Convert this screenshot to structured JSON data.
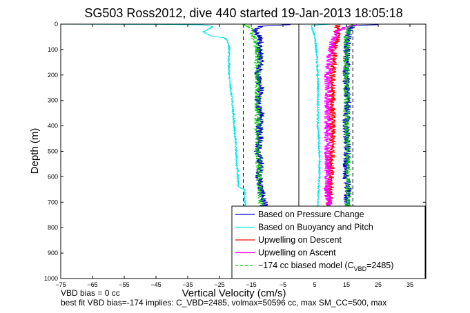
{
  "chart_data": {
    "type": "line",
    "title": "SG503 Ross2012, dive 440 started 19-Jan-2013 18:05:18",
    "xlabel": "Vertical Velocity (cm/s)",
    "ylabel": "Depth (m)",
    "xlim": [
      -75,
      40
    ],
    "ylim": [
      0,
      1000
    ],
    "y_reversed": true,
    "xticks": [
      -75,
      -65,
      -55,
      -45,
      -35,
      -25,
      -15,
      -5,
      5,
      15,
      25,
      35
    ],
    "yticks": [
      0,
      100,
      200,
      300,
      400,
      500,
      600,
      700,
      800,
      900,
      1000
    ],
    "grid": false,
    "legend_position": "bottom-right",
    "reference_lines": [
      {
        "x": 0,
        "style": "solid",
        "color": "#000000"
      },
      {
        "x": -17.5,
        "style": "dashed",
        "color": "#000000"
      },
      {
        "x": 17,
        "style": "dashed",
        "color": "#000000"
      }
    ],
    "series": [
      {
        "name": "Based on Pressure Change",
        "color": "#0000cc",
        "style": "solid",
        "noise": 1.2,
        "points": [
          [
            -3,
            2
          ],
          [
            -12,
            8
          ],
          [
            -14,
            25
          ],
          [
            -12,
            60
          ],
          [
            -12.5,
            100
          ],
          [
            -12,
            150
          ],
          [
            -13,
            200
          ],
          [
            -12,
            250
          ],
          [
            -13,
            300
          ],
          [
            -12,
            350
          ],
          [
            -12.5,
            400
          ],
          [
            -12,
            450
          ],
          [
            -13,
            500
          ],
          [
            -12,
            550
          ],
          [
            -12.5,
            600
          ],
          [
            -12,
            650
          ],
          [
            -11,
            700
          ],
          [
            -11,
            720
          ],
          [
            15,
            720
          ],
          [
            15,
            700
          ],
          [
            15.5,
            650
          ],
          [
            15,
            600
          ],
          [
            15,
            550
          ],
          [
            15.5,
            500
          ],
          [
            15,
            450
          ],
          [
            15,
            400
          ],
          [
            15,
            350
          ],
          [
            15.5,
            300
          ],
          [
            15,
            250
          ],
          [
            15,
            200
          ],
          [
            15,
            150
          ],
          [
            15,
            100
          ],
          [
            15.5,
            60
          ],
          [
            16,
            20
          ],
          [
            17,
            5
          ],
          [
            25,
            2
          ]
        ]
      },
      {
        "name": "Based on Buoyancy and Pitch",
        "color": "#00e5e5",
        "style": "solid",
        "noise": 0.3,
        "points": [
          [
            -75,
            0
          ],
          [
            -45,
            1
          ],
          [
            -30,
            3
          ],
          [
            -27,
            10
          ],
          [
            -30,
            30
          ],
          [
            -28,
            45
          ],
          [
            -23,
            55
          ],
          [
            -22,
            80
          ],
          [
            -22,
            200
          ],
          [
            -21,
            300
          ],
          [
            -20,
            450
          ],
          [
            -19.5,
            550
          ],
          [
            -19,
            640
          ],
          [
            -17,
            650
          ],
          [
            -17,
            700
          ],
          [
            -17,
            720
          ],
          [
            6,
            720
          ],
          [
            6,
            700
          ],
          [
            6.5,
            600
          ],
          [
            6.5,
            500
          ],
          [
            6,
            400
          ],
          [
            6,
            300
          ],
          [
            6,
            200
          ],
          [
            5.5,
            100
          ],
          [
            5,
            50
          ],
          [
            4,
            10
          ],
          [
            4,
            5
          ],
          [
            10,
            0
          ]
        ]
      },
      {
        "name": "Upwelling on Descent",
        "color": "#ff0000",
        "style": "solid",
        "noise": 1.1,
        "points": [
          [
            12,
            2
          ],
          [
            12,
            20
          ],
          [
            12,
            60
          ],
          [
            11,
            100
          ],
          [
            11,
            150
          ],
          [
            10.5,
            200
          ],
          [
            10.5,
            300
          ],
          [
            10.5,
            400
          ],
          [
            10.5,
            500
          ],
          [
            10,
            600
          ],
          [
            10,
            650
          ],
          [
            9.5,
            700
          ],
          [
            9.5,
            720
          ]
        ]
      },
      {
        "name": "Upwelling on Ascent",
        "color": "#ff00ff",
        "style": "solid",
        "noise": 1.1,
        "points": [
          [
            9.5,
            720
          ],
          [
            9.5,
            700
          ],
          [
            9,
            650
          ],
          [
            9,
            600
          ],
          [
            9,
            500
          ],
          [
            9,
            400
          ],
          [
            9,
            300
          ],
          [
            9,
            200
          ],
          [
            9.5,
            150
          ],
          [
            10,
            100
          ],
          [
            11,
            60
          ],
          [
            12,
            30
          ],
          [
            15,
            10
          ],
          [
            18,
            2
          ]
        ]
      },
      {
        "name": "-174 cc biased model (C_VBD=2485)",
        "color": "#00cc00",
        "style": "dashed",
        "noise": 1.0,
        "points": [
          [
            -17,
            2
          ],
          [
            -15,
            20
          ],
          [
            -14,
            60
          ],
          [
            -13,
            100
          ],
          [
            -13,
            200
          ],
          [
            -13,
            300
          ],
          [
            -13,
            400
          ],
          [
            -13,
            500
          ],
          [
            -12.5,
            600
          ],
          [
            -12,
            700
          ],
          [
            -12,
            720
          ],
          [
            15.5,
            720
          ],
          [
            15.5,
            700
          ],
          [
            15.5,
            600
          ],
          [
            15.5,
            500
          ],
          [
            15,
            400
          ],
          [
            15,
            300
          ],
          [
            15,
            200
          ],
          [
            15,
            100
          ],
          [
            15,
            50
          ],
          [
            16,
            10
          ],
          [
            17,
            2
          ]
        ]
      }
    ],
    "legend": [
      {
        "label": "Based on Pressure Change",
        "color": "#0000cc",
        "style": "solid"
      },
      {
        "label": "Based on Buoyancy and Pitch",
        "color": "#00e5e5",
        "style": "solid"
      },
      {
        "label": "Upwelling on Descent",
        "color": "#ff0000",
        "style": "solid"
      },
      {
        "label": "Upwelling on Ascent",
        "color": "#ff00ff",
        "style": "solid"
      },
      {
        "label_main": "−174 cc biased model (C",
        "label_sub": "VBD",
        "label_tail": "=2485)",
        "color": "#00cc00",
        "style": "dashed"
      }
    ],
    "annotations": {
      "line1": "VBD bias = 0 cc",
      "line2": "best fit VBD bias=-174 implies: C_VBD=2485, volmax=50596 cc, max SM_CC=500, max"
    }
  }
}
